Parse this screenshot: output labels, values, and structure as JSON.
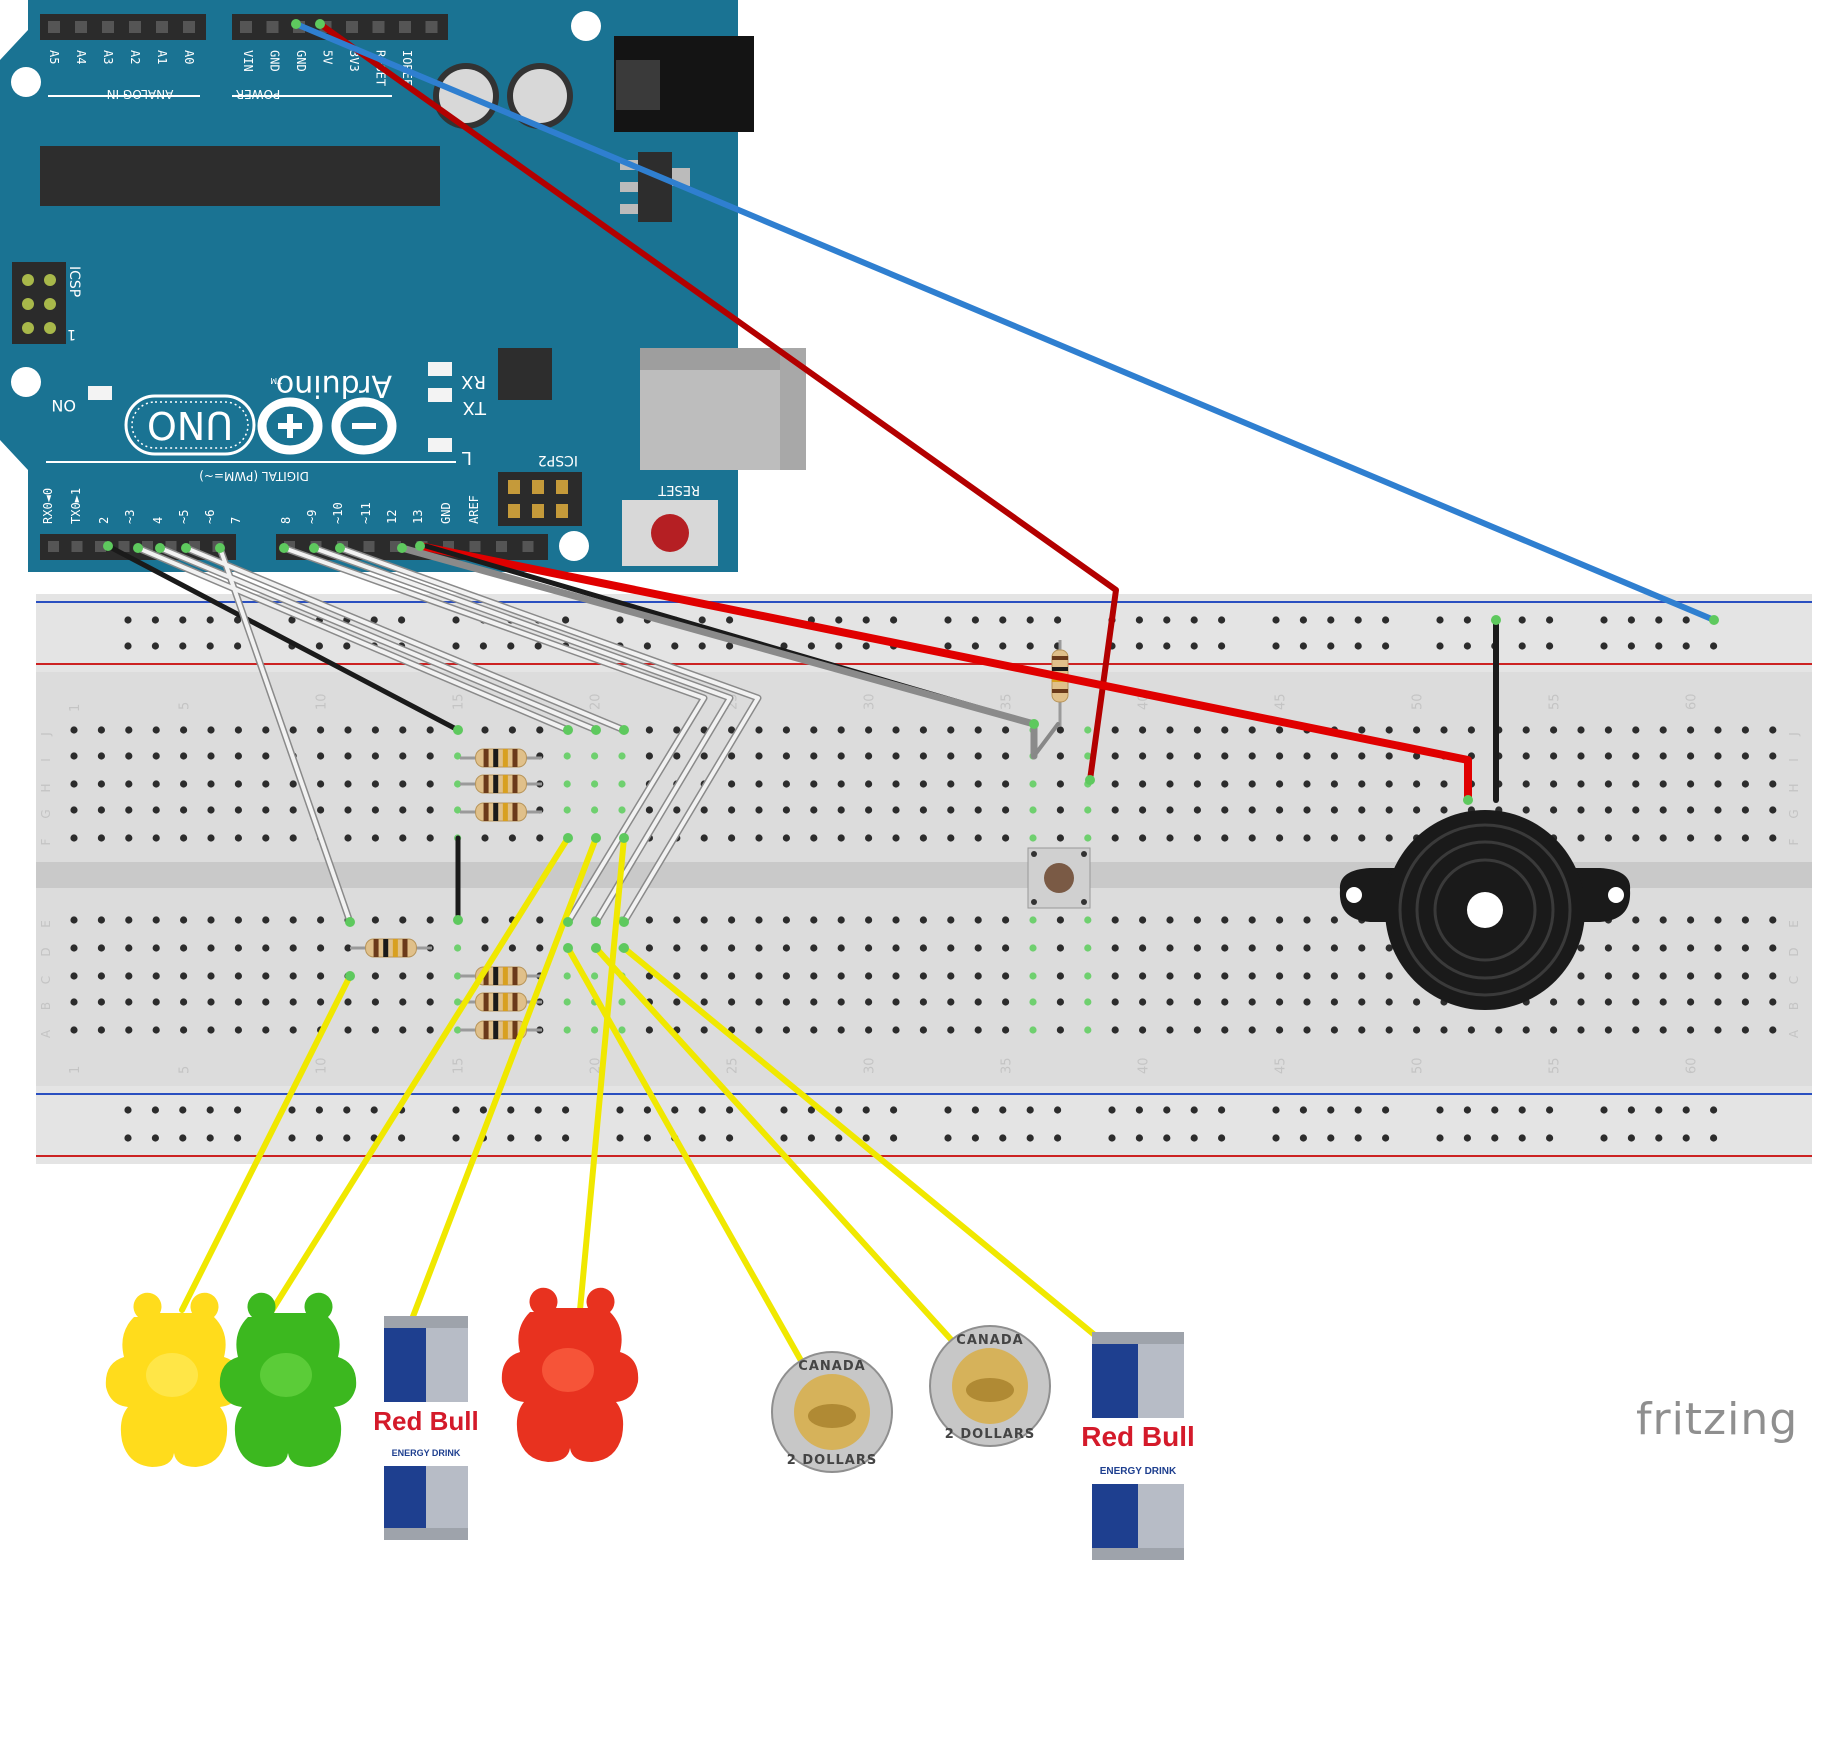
{
  "brand": "fritzing",
  "arduino": {
    "model": "UNO",
    "logo_text": "Arduino",
    "section_analog": "ANALOG IN",
    "section_power": "POWER",
    "section_digital": "DIGITAL (PWM=~)",
    "analog_pins": [
      "A5",
      "A4",
      "A3",
      "A2",
      "A1",
      "A0"
    ],
    "power_pins": [
      "VIN",
      "GND",
      "GND",
      "5V",
      "3V3",
      "RESET",
      "IOREF"
    ],
    "digital_pins": [
      "RX0◄0",
      "TX0►1",
      "2",
      "~3",
      "4",
      "~5",
      "~6",
      "7",
      "8",
      "~9",
      "~10",
      "~11",
      "12",
      "13",
      "GND",
      "AREF"
    ],
    "labels": {
      "icsp": "ICSP",
      "icsp2": "ICSP2",
      "icsp_pin1": "1",
      "reset": "RESET",
      "on": "ON",
      "rx": "RX",
      "tx": "TX",
      "l": "L",
      "tm": "TM"
    },
    "colors": {
      "board": "#1a7393",
      "header": "#2b2b2b",
      "reset_button": "#b51f23"
    }
  },
  "breadboard": {
    "row_letters_top": [
      "J",
      "I",
      "H",
      "G",
      "F"
    ],
    "row_letters_bottom": [
      "E",
      "D",
      "C",
      "B",
      "A"
    ],
    "column_numbers": [
      "1",
      "5",
      "10",
      "15",
      "20",
      "25",
      "30",
      "35",
      "40",
      "45",
      "50",
      "55",
      "60"
    ]
  },
  "items": {
    "redbull_brand": "Red Bull",
    "redbull_sub": "ENERGY DRINK",
    "coin_top": "CANADA",
    "coin_bottom": "2 DOLLARS"
  },
  "wire_colors": {
    "red": "#e00000",
    "dark_red": "#b30000",
    "blue": "#2f7fd0",
    "black": "#1a1a1a",
    "white": "#f2f2f2",
    "yellow": "#f0e800"
  }
}
